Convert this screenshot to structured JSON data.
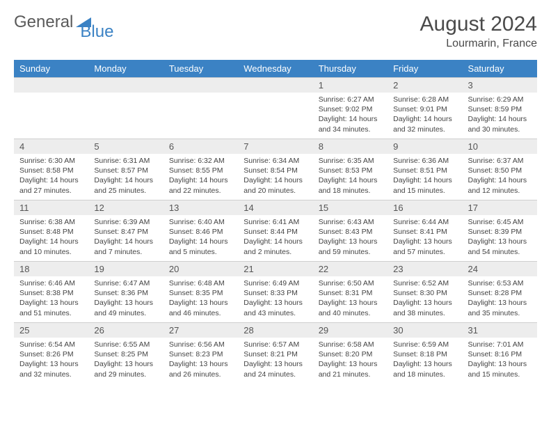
{
  "logo": {
    "text1": "General",
    "text2": "Blue"
  },
  "title": "August 2024",
  "location": "Lourmarin, France",
  "colors": {
    "header_bg": "#3b82c4",
    "header_text": "#ffffff",
    "daynum_bg": "#ededed",
    "body_text": "#444444",
    "title_text": "#4a4a4a"
  },
  "dayHeaders": [
    "Sunday",
    "Monday",
    "Tuesday",
    "Wednesday",
    "Thursday",
    "Friday",
    "Saturday"
  ],
  "weeks": [
    [
      {
        "n": "",
        "lines": []
      },
      {
        "n": "",
        "lines": []
      },
      {
        "n": "",
        "lines": []
      },
      {
        "n": "",
        "lines": []
      },
      {
        "n": "1",
        "lines": [
          "Sunrise: 6:27 AM",
          "Sunset: 9:02 PM",
          "Daylight: 14 hours and 34 minutes."
        ]
      },
      {
        "n": "2",
        "lines": [
          "Sunrise: 6:28 AM",
          "Sunset: 9:01 PM",
          "Daylight: 14 hours and 32 minutes."
        ]
      },
      {
        "n": "3",
        "lines": [
          "Sunrise: 6:29 AM",
          "Sunset: 8:59 PM",
          "Daylight: 14 hours and 30 minutes."
        ]
      }
    ],
    [
      {
        "n": "4",
        "lines": [
          "Sunrise: 6:30 AM",
          "Sunset: 8:58 PM",
          "Daylight: 14 hours and 27 minutes."
        ]
      },
      {
        "n": "5",
        "lines": [
          "Sunrise: 6:31 AM",
          "Sunset: 8:57 PM",
          "Daylight: 14 hours and 25 minutes."
        ]
      },
      {
        "n": "6",
        "lines": [
          "Sunrise: 6:32 AM",
          "Sunset: 8:55 PM",
          "Daylight: 14 hours and 22 minutes."
        ]
      },
      {
        "n": "7",
        "lines": [
          "Sunrise: 6:34 AM",
          "Sunset: 8:54 PM",
          "Daylight: 14 hours and 20 minutes."
        ]
      },
      {
        "n": "8",
        "lines": [
          "Sunrise: 6:35 AM",
          "Sunset: 8:53 PM",
          "Daylight: 14 hours and 18 minutes."
        ]
      },
      {
        "n": "9",
        "lines": [
          "Sunrise: 6:36 AM",
          "Sunset: 8:51 PM",
          "Daylight: 14 hours and 15 minutes."
        ]
      },
      {
        "n": "10",
        "lines": [
          "Sunrise: 6:37 AM",
          "Sunset: 8:50 PM",
          "Daylight: 14 hours and 12 minutes."
        ]
      }
    ],
    [
      {
        "n": "11",
        "lines": [
          "Sunrise: 6:38 AM",
          "Sunset: 8:48 PM",
          "Daylight: 14 hours and 10 minutes."
        ]
      },
      {
        "n": "12",
        "lines": [
          "Sunrise: 6:39 AM",
          "Sunset: 8:47 PM",
          "Daylight: 14 hours and 7 minutes."
        ]
      },
      {
        "n": "13",
        "lines": [
          "Sunrise: 6:40 AM",
          "Sunset: 8:46 PM",
          "Daylight: 14 hours and 5 minutes."
        ]
      },
      {
        "n": "14",
        "lines": [
          "Sunrise: 6:41 AM",
          "Sunset: 8:44 PM",
          "Daylight: 14 hours and 2 minutes."
        ]
      },
      {
        "n": "15",
        "lines": [
          "Sunrise: 6:43 AM",
          "Sunset: 8:43 PM",
          "Daylight: 13 hours and 59 minutes."
        ]
      },
      {
        "n": "16",
        "lines": [
          "Sunrise: 6:44 AM",
          "Sunset: 8:41 PM",
          "Daylight: 13 hours and 57 minutes."
        ]
      },
      {
        "n": "17",
        "lines": [
          "Sunrise: 6:45 AM",
          "Sunset: 8:39 PM",
          "Daylight: 13 hours and 54 minutes."
        ]
      }
    ],
    [
      {
        "n": "18",
        "lines": [
          "Sunrise: 6:46 AM",
          "Sunset: 8:38 PM",
          "Daylight: 13 hours and 51 minutes."
        ]
      },
      {
        "n": "19",
        "lines": [
          "Sunrise: 6:47 AM",
          "Sunset: 8:36 PM",
          "Daylight: 13 hours and 49 minutes."
        ]
      },
      {
        "n": "20",
        "lines": [
          "Sunrise: 6:48 AM",
          "Sunset: 8:35 PM",
          "Daylight: 13 hours and 46 minutes."
        ]
      },
      {
        "n": "21",
        "lines": [
          "Sunrise: 6:49 AM",
          "Sunset: 8:33 PM",
          "Daylight: 13 hours and 43 minutes."
        ]
      },
      {
        "n": "22",
        "lines": [
          "Sunrise: 6:50 AM",
          "Sunset: 8:31 PM",
          "Daylight: 13 hours and 40 minutes."
        ]
      },
      {
        "n": "23",
        "lines": [
          "Sunrise: 6:52 AM",
          "Sunset: 8:30 PM",
          "Daylight: 13 hours and 38 minutes."
        ]
      },
      {
        "n": "24",
        "lines": [
          "Sunrise: 6:53 AM",
          "Sunset: 8:28 PM",
          "Daylight: 13 hours and 35 minutes."
        ]
      }
    ],
    [
      {
        "n": "25",
        "lines": [
          "Sunrise: 6:54 AM",
          "Sunset: 8:26 PM",
          "Daylight: 13 hours and 32 minutes."
        ]
      },
      {
        "n": "26",
        "lines": [
          "Sunrise: 6:55 AM",
          "Sunset: 8:25 PM",
          "Daylight: 13 hours and 29 minutes."
        ]
      },
      {
        "n": "27",
        "lines": [
          "Sunrise: 6:56 AM",
          "Sunset: 8:23 PM",
          "Daylight: 13 hours and 26 minutes."
        ]
      },
      {
        "n": "28",
        "lines": [
          "Sunrise: 6:57 AM",
          "Sunset: 8:21 PM",
          "Daylight: 13 hours and 24 minutes."
        ]
      },
      {
        "n": "29",
        "lines": [
          "Sunrise: 6:58 AM",
          "Sunset: 8:20 PM",
          "Daylight: 13 hours and 21 minutes."
        ]
      },
      {
        "n": "30",
        "lines": [
          "Sunrise: 6:59 AM",
          "Sunset: 8:18 PM",
          "Daylight: 13 hours and 18 minutes."
        ]
      },
      {
        "n": "31",
        "lines": [
          "Sunrise: 7:01 AM",
          "Sunset: 8:16 PM",
          "Daylight: 13 hours and 15 minutes."
        ]
      }
    ]
  ]
}
